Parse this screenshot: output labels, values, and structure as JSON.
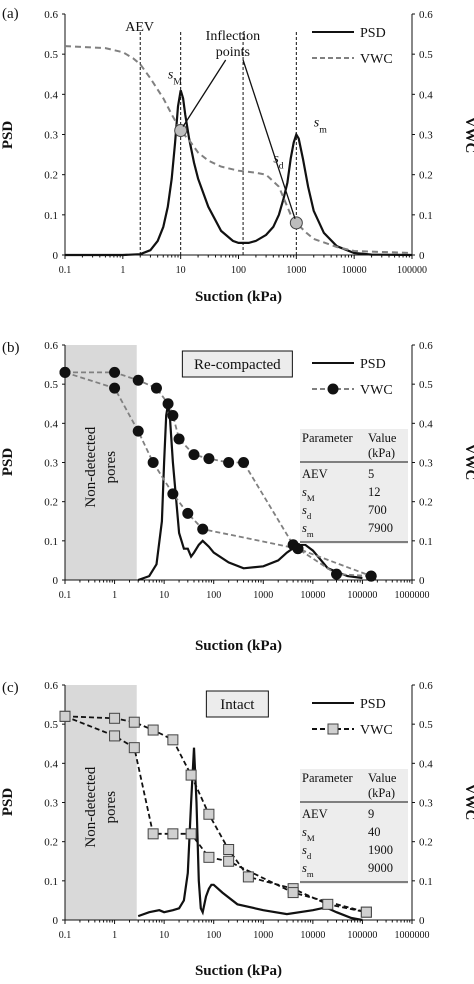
{
  "chart_data": [
    {
      "panel": "(a)",
      "type": "line",
      "xscale": "log",
      "xlabel": "Suction (kPa)",
      "ylabel": "PSD",
      "ylabel_right": "VWC",
      "xlim": [
        0.1,
        100000
      ],
      "ylim": [
        0,
        0.6
      ],
      "ylim_right": [
        0,
        0.6
      ],
      "x_ticks": [
        "0.1",
        "1",
        "10",
        "100",
        "1000",
        "10000",
        "100000"
      ],
      "y_ticks": [
        "0",
        "0.1",
        "0.2",
        "0.3",
        "0.4",
        "0.5",
        "0.6"
      ],
      "legend": "top-right",
      "series": [
        {
          "name": "PSD",
          "style": "solid",
          "points": [
            [
              0.1,
              0
            ],
            [
              1,
              0
            ],
            [
              2,
              0.002
            ],
            [
              3,
              0.012
            ],
            [
              4,
              0.035
            ],
            [
              5,
              0.07
            ],
            [
              6,
              0.12
            ],
            [
              7,
              0.19
            ],
            [
              8,
              0.28
            ],
            [
              9,
              0.37
            ],
            [
              10,
              0.41
            ],
            [
              11,
              0.39
            ],
            [
              12,
              0.35
            ],
            [
              14,
              0.29
            ],
            [
              17,
              0.23
            ],
            [
              20,
              0.19
            ],
            [
              30,
              0.12
            ],
            [
              50,
              0.06
            ],
            [
              80,
              0.035
            ],
            [
              100,
              0.03
            ],
            [
              150,
              0.03
            ],
            [
              200,
              0.035
            ],
            [
              300,
              0.05
            ],
            [
              400,
              0.07
            ],
            [
              500,
              0.1
            ],
            [
              600,
              0.14
            ],
            [
              700,
              0.18
            ],
            [
              800,
              0.24
            ],
            [
              900,
              0.28
            ],
            [
              1000,
              0.3
            ],
            [
              1100,
              0.29
            ],
            [
              1300,
              0.24
            ],
            [
              1600,
              0.17
            ],
            [
              2000,
              0.11
            ],
            [
              3000,
              0.055
            ],
            [
              5000,
              0.022
            ],
            [
              10000,
              0.005
            ],
            [
              20000,
              0.001
            ],
            [
              100000,
              0
            ]
          ]
        },
        {
          "name": "VWC",
          "style": "dashed",
          "points": [
            [
              0.1,
              0.52
            ],
            [
              0.5,
              0.515
            ],
            [
              1,
              0.505
            ],
            [
              1.5,
              0.49
            ],
            [
              2,
              0.475
            ],
            [
              3,
              0.44
            ],
            [
              5,
              0.39
            ],
            [
              7,
              0.35
            ],
            [
              10,
              0.31
            ],
            [
              15,
              0.28
            ],
            [
              20,
              0.255
            ],
            [
              30,
              0.235
            ],
            [
              50,
              0.22
            ],
            [
              100,
              0.21
            ],
            [
              200,
              0.205
            ],
            [
              300,
              0.2
            ],
            [
              500,
              0.17
            ],
            [
              800,
              0.1
            ],
            [
              1000,
              0.08
            ],
            [
              1500,
              0.055
            ],
            [
              2000,
              0.04
            ],
            [
              5000,
              0.02
            ],
            [
              10000,
              0.01
            ],
            [
              100000,
              0.005
            ]
          ]
        }
      ],
      "annotations": {
        "aev": "AEV",
        "inflection": [
          "Inflection",
          "points"
        ],
        "sM": "s",
        "sM_sub": "M",
        "sd": "s",
        "sd_sub": "d",
        "sm": "s",
        "sm_sub": "m"
      },
      "reference_lines_x": [
        2,
        10,
        120,
        1000
      ],
      "inflection_points": [
        [
          10,
          0.31
        ],
        [
          1000,
          0.08
        ]
      ]
    },
    {
      "panel": "(b)",
      "type": "line",
      "xscale": "log",
      "xlabel": "Suction (kPa)",
      "ylabel": "PSD",
      "ylabel_right": "VWC",
      "xlim": [
        0.1,
        1000000
      ],
      "ylim": [
        0,
        0.6
      ],
      "ylim_right": [
        0,
        0.6
      ],
      "x_ticks": [
        "0.1",
        "1",
        "10",
        "100",
        "1000",
        "10000",
        "100000",
        "1000000"
      ],
      "y_ticks": [
        "0",
        "0.1",
        "0.2",
        "0.3",
        "0.4",
        "0.5",
        "0.6"
      ],
      "title_box": "Re-compacted",
      "shaded_region_label": [
        "Non-detected",
        "pores"
      ],
      "shaded_region_x": [
        0.1,
        2.8
      ],
      "legend": "top-right",
      "series": [
        {
          "name": "PSD",
          "style": "solid",
          "points": [
            [
              3,
              0
            ],
            [
              5,
              0.01
            ],
            [
              7,
              0.04
            ],
            [
              9,
              0.15
            ],
            [
              10,
              0.3
            ],
            [
              11,
              0.42
            ],
            [
              12,
              0.45
            ],
            [
              13,
              0.42
            ],
            [
              15,
              0.3
            ],
            [
              20,
              0.12
            ],
            [
              25,
              0.08
            ],
            [
              30,
              0.08
            ],
            [
              35,
              0.06
            ],
            [
              40,
              0.07
            ],
            [
              50,
              0.09
            ],
            [
              60,
              0.1
            ],
            [
              80,
              0.085
            ],
            [
              100,
              0.07
            ],
            [
              200,
              0.045
            ],
            [
              400,
              0.03
            ],
            [
              1000,
              0.035
            ],
            [
              2000,
              0.05
            ],
            [
              3000,
              0.07
            ],
            [
              5000,
              0.09
            ],
            [
              7000,
              0.09
            ],
            [
              10000,
              0.075
            ],
            [
              20000,
              0.03
            ],
            [
              50000,
              0.01
            ],
            [
              100000,
              0.005
            ]
          ]
        },
        {
          "name": "VWC",
          "style": "dashed-marker",
          "marker": "circle",
          "drying_points": [
            [
              0.1,
              0.53
            ],
            [
              1,
              0.53
            ],
            [
              3,
              0.51
            ],
            [
              7,
              0.49
            ],
            [
              12,
              0.45
            ],
            [
              15,
              0.42
            ],
            [
              20,
              0.36
            ],
            [
              40,
              0.32
            ],
            [
              80,
              0.31
            ],
            [
              200,
              0.3
            ],
            [
              400,
              0.3
            ],
            [
              4000,
              0.09
            ],
            [
              5000,
              0.08
            ],
            [
              30000,
              0.015
            ],
            [
              150000,
              0.01
            ]
          ],
          "wetting_points": [
            [
              0.1,
              0.53
            ],
            [
              1,
              0.49
            ],
            [
              3,
              0.38
            ],
            [
              6,
              0.3
            ],
            [
              15,
              0.22
            ],
            [
              30,
              0.17
            ],
            [
              60,
              0.13
            ],
            [
              5000,
              0.08
            ],
            [
              150000,
              0.01
            ]
          ]
        }
      ],
      "table": {
        "header": [
          "Parameter",
          "Value"
        ],
        "header_unit": "(kPa)",
        "rows": [
          {
            "param": "AEV",
            "sub": "",
            "value": "5"
          },
          {
            "param": "s",
            "sub": "M",
            "value": "12"
          },
          {
            "param": "s",
            "sub": "d",
            "value": "700"
          },
          {
            "param": "s",
            "sub": "m",
            "value": "7900"
          }
        ]
      }
    },
    {
      "panel": "(c)",
      "type": "line",
      "xscale": "log",
      "xlabel": "Suction (kPa)",
      "ylabel": "PSD",
      "ylabel_right": "VWC",
      "xlim": [
        0.1,
        1000000
      ],
      "ylim": [
        0,
        0.6
      ],
      "ylim_right": [
        0,
        0.6
      ],
      "x_ticks": [
        "0.1",
        "1",
        "10",
        "100",
        "1000",
        "10000",
        "100000",
        "1000000"
      ],
      "y_ticks": [
        "0",
        "0.1",
        "0.2",
        "0.3",
        "0.4",
        "0.5",
        "0.6"
      ],
      "title_box": "Intact",
      "shaded_region_label": [
        "Non-detected",
        "pores"
      ],
      "shaded_region_x": [
        0.1,
        2.8
      ],
      "legend": "top-right",
      "series": [
        {
          "name": "PSD",
          "style": "solid",
          "points": [
            [
              3,
              0.01
            ],
            [
              5,
              0.02
            ],
            [
              8,
              0.025
            ],
            [
              10,
              0.02
            ],
            [
              15,
              0.025
            ],
            [
              20,
              0.03
            ],
            [
              25,
              0.05
            ],
            [
              30,
              0.12
            ],
            [
              35,
              0.3
            ],
            [
              40,
              0.44
            ],
            [
              45,
              0.3
            ],
            [
              50,
              0.1
            ],
            [
              55,
              0.03
            ],
            [
              60,
              0.02
            ],
            [
              70,
              0.06
            ],
            [
              80,
              0.08
            ],
            [
              90,
              0.09
            ],
            [
              100,
              0.09
            ],
            [
              150,
              0.07
            ],
            [
              300,
              0.04
            ],
            [
              1000,
              0.025
            ],
            [
              3000,
              0.015
            ],
            [
              10000,
              0.025
            ],
            [
              15000,
              0.03
            ],
            [
              20000,
              0.03
            ],
            [
              30000,
              0.02
            ],
            [
              60000,
              0.005
            ],
            [
              100000,
              0
            ]
          ]
        },
        {
          "name": "VWC",
          "style": "dashed-marker",
          "marker": "square",
          "drying_points": [
            [
              0.1,
              0.52
            ],
            [
              1,
              0.515
            ],
            [
              2.5,
              0.505
            ],
            [
              6,
              0.485
            ],
            [
              15,
              0.46
            ],
            [
              35,
              0.37
            ],
            [
              80,
              0.27
            ],
            [
              200,
              0.18
            ],
            [
              500,
              0.11
            ],
            [
              4000,
              0.08
            ],
            [
              20000,
              0.04
            ],
            [
              120000,
              0.02
            ]
          ],
          "wetting_points": [
            [
              0.1,
              0.52
            ],
            [
              1,
              0.47
            ],
            [
              2.5,
              0.44
            ],
            [
              6,
              0.22
            ],
            [
              15,
              0.22
            ],
            [
              35,
              0.22
            ],
            [
              80,
              0.16
            ],
            [
              200,
              0.15
            ],
            [
              4000,
              0.07
            ],
            [
              120000,
              0.02
            ]
          ]
        }
      ],
      "table": {
        "header": [
          "Parameter",
          "Value"
        ],
        "header_unit": "(kPa)",
        "rows": [
          {
            "param": "AEV",
            "sub": "",
            "value": "9"
          },
          {
            "param": "s",
            "sub": "M",
            "value": "40"
          },
          {
            "param": "s",
            "sub": "d",
            "value": "1900"
          },
          {
            "param": "s",
            "sub": "m",
            "value": "9000"
          }
        ]
      }
    }
  ]
}
